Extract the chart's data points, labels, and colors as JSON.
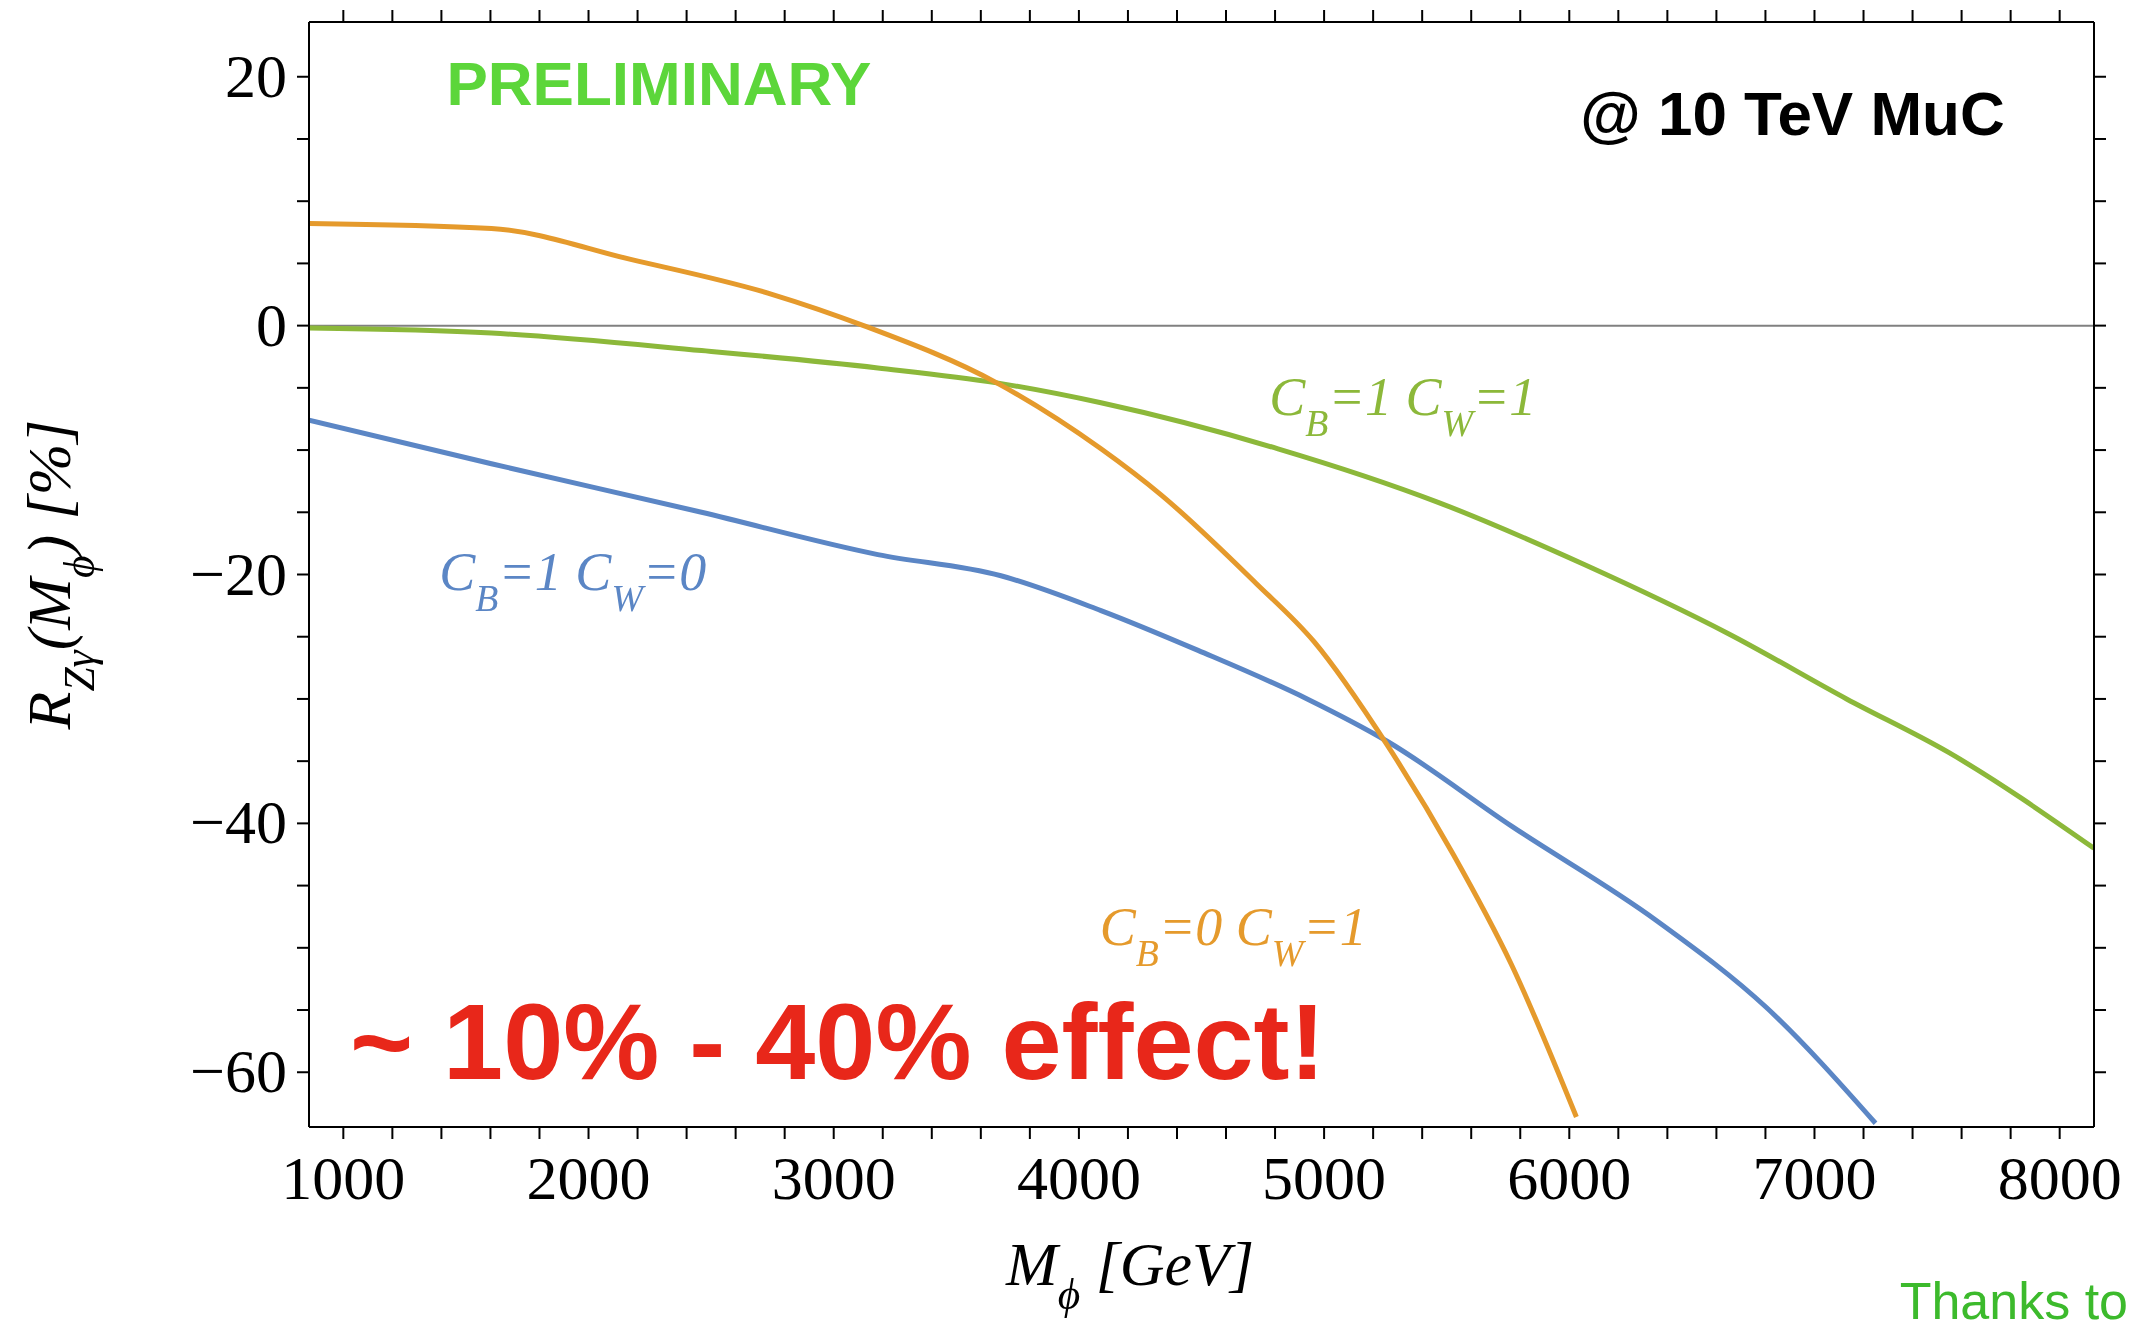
{
  "chart_data": {
    "type": "line",
    "xlabel": "M$_{ϕ}$ [GeV]",
    "ylabel": "R$_{Zγ}$(M$_{ϕ}$) [%]",
    "annotations": [
      "PRELIMINARY",
      "@ 10 TeV MuC",
      "~ 10% - 40% effect!",
      "Thanks to"
    ],
    "xlim": [
      860,
      8140
    ],
    "ylim": [
      -64.4,
      24.4
    ],
    "xticks": [
      1000,
      {
        "value": 1200,
        "label": null
      },
      {
        "value": 1400,
        "label": null
      },
      {
        "value": 1600,
        "label": null
      },
      {
        "value": 1800,
        "label": null
      },
      2000,
      {
        "value": 2200,
        "label": null
      },
      {
        "value": 2400,
        "label": null
      },
      {
        "value": 2600,
        "label": null
      },
      {
        "value": 2800,
        "label": null
      },
      3000,
      {
        "value": 3200,
        "label": null
      },
      {
        "value": 3400,
        "label": null
      },
      {
        "value": 3600,
        "label": null
      },
      {
        "value": 3800,
        "label": null
      },
      4000,
      {
        "value": 4200,
        "label": null
      },
      {
        "value": 4400,
        "label": null
      },
      {
        "value": 4600,
        "label": null
      },
      {
        "value": 4800,
        "label": null
      },
      5000,
      {
        "value": 5200,
        "label": null
      },
      {
        "value": 5400,
        "label": null
      },
      {
        "value": 5600,
        "label": null
      },
      {
        "value": 5800,
        "label": null
      },
      6000,
      {
        "value": 6200,
        "label": null
      },
      {
        "value": 6400,
        "label": null
      },
      {
        "value": 6600,
        "label": null
      },
      {
        "value": 6800,
        "label": null
      },
      7000,
      {
        "value": 7200,
        "label": null
      },
      {
        "value": 7400,
        "label": null
      },
      {
        "value": 7600,
        "label": null
      },
      {
        "value": 7800,
        "label": null
      },
      8000
    ],
    "yticks": [
      -60,
      {
        "value": -55,
        "label": null
      },
      {
        "value": -50,
        "label": null
      },
      {
        "value": -45,
        "label": null
      },
      -40,
      {
        "value": -35,
        "label": null
      },
      {
        "value": -30,
        "label": null
      },
      {
        "value": -25,
        "label": null
      },
      -20,
      {
        "value": -15,
        "label": null
      },
      {
        "value": -10,
        "label": null
      },
      {
        "value": -5,
        "label": null
      },
      0,
      {
        "value": 5,
        "label": null
      },
      {
        "value": 10,
        "label": null
      },
      {
        "value": 15,
        "label": null
      },
      20
    ],
    "ref_lines": [
      {
        "axis": "y",
        "value": 0,
        "color": "#808080"
      }
    ],
    "marker": "none",
    "line_style": "solid",
    "series": [
      {
        "name": "C$_{B}$=1 C$_{W}$=0",
        "color": "#5b86c5",
        "x": [
          860,
          1604,
          2461,
          3180,
          3682,
          4090,
          4486,
          4931,
          5257,
          5763,
          6355,
          6804,
          7249
        ],
        "values": [
          -7.6,
          -11.1,
          -15.0,
          -18.4,
          -20.1,
          -22.9,
          -26.1,
          -30.0,
          -33.4,
          -40.2,
          -47.8,
          -54.8,
          -64.1
        ]
      },
      {
        "name": "C$_{B}$=1 C$_{W}$=1",
        "color": "#8cb83a",
        "x": [
          860,
          1604,
          2461,
          3180,
          3665,
          4090,
          4812,
          5465,
          6061,
          6653,
          7131,
          7547,
          8140
        ],
        "values": [
          -0.2,
          -0.6,
          -2.0,
          -3.4,
          -4.6,
          -6.2,
          -9.9,
          -14.2,
          -19.2,
          -24.8,
          -30.0,
          -34.3,
          -42.0
        ]
      },
      {
        "name": "C$_{B}$=0 C$_{W}$=1",
        "color": "#e59a2c",
        "x": [
          860,
          1604,
          2176,
          2751,
          3122,
          3665,
          4090,
          4335,
          4722,
          4959,
          5257,
          5527,
          5763,
          6029
        ],
        "values": [
          8.2,
          7.8,
          5.3,
          2.5,
          0,
          -4.6,
          -9.9,
          -13.6,
          -20.7,
          -25.4,
          -33.7,
          -42.5,
          -51.3,
          -63.6
        ]
      }
    ]
  }
}
